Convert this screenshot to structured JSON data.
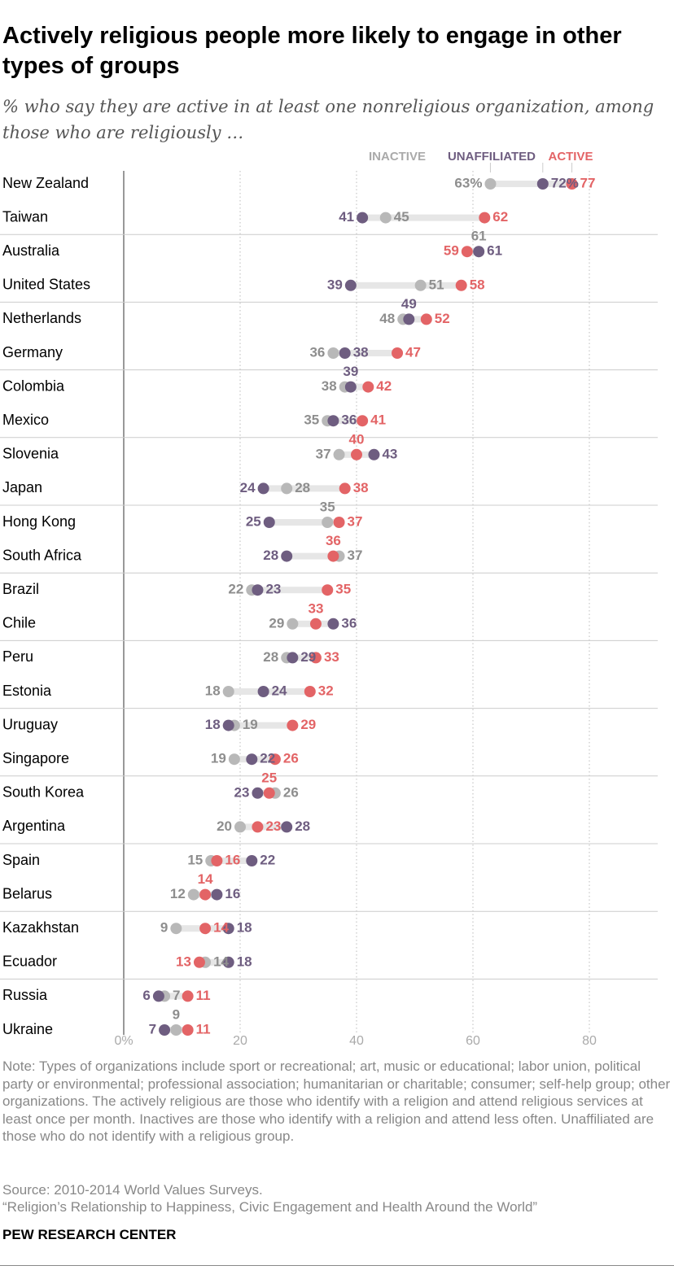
{
  "title": "Actively religious people more likely to engage in other types of groups",
  "subtitle": "% who say they are active in at least one nonreligious organization, among those who are religiously …",
  "colors": {
    "inactive": "#b8b8b8",
    "unaffiliated": "#6e5d80",
    "active": "#e36466",
    "inactive_label": "#8e8e8e",
    "connector": "#e6e6e6",
    "axis_text": "#aaaaaa"
  },
  "chart_data": {
    "type": "dot",
    "xlim": [
      0,
      80
    ],
    "ticks": [
      0,
      20,
      40,
      60,
      80
    ],
    "tick_labels": [
      "0%",
      "20",
      "40",
      "60",
      "80"
    ],
    "legend": [
      "INACTIVE",
      "UNAFFILIATED",
      "ACTIVE"
    ],
    "series_order": [
      "inactive",
      "unaffiliated",
      "active"
    ],
    "rows": [
      {
        "country": "New Zealand",
        "inactive": 63,
        "unaffiliated": 72,
        "active": 77,
        "labels": {
          "inactive": "63%",
          "unaffiliated": "72%",
          "active": "77"
        }
      },
      {
        "country": "Taiwan",
        "inactive": 45,
        "unaffiliated": 41,
        "active": 62
      },
      {
        "country": "Australia",
        "inactive": 61,
        "unaffiliated": 61,
        "active": 59
      },
      {
        "country": "United States",
        "inactive": 51,
        "unaffiliated": 39,
        "active": 58
      },
      {
        "country": "Netherlands",
        "inactive": 48,
        "unaffiliated": 49,
        "active": 52
      },
      {
        "country": "Germany",
        "inactive": 36,
        "unaffiliated": 38,
        "active": 47
      },
      {
        "country": "Colombia",
        "inactive": 38,
        "unaffiliated": 39,
        "active": 42
      },
      {
        "country": "Mexico",
        "inactive": 35,
        "unaffiliated": 36,
        "active": 41
      },
      {
        "country": "Slovenia",
        "inactive": 37,
        "unaffiliated": 43,
        "active": 40
      },
      {
        "country": "Japan",
        "inactive": 28,
        "unaffiliated": 24,
        "active": 38
      },
      {
        "country": "Hong Kong",
        "inactive": 35,
        "unaffiliated": 25,
        "active": 37
      },
      {
        "country": "South Africa",
        "inactive": 37,
        "unaffiliated": 28,
        "active": 36
      },
      {
        "country": "Brazil",
        "inactive": 22,
        "unaffiliated": 23,
        "active": 35
      },
      {
        "country": "Chile",
        "inactive": 29,
        "unaffiliated": 36,
        "active": 33
      },
      {
        "country": "Peru",
        "inactive": 28,
        "unaffiliated": 29,
        "active": 33
      },
      {
        "country": "Estonia",
        "inactive": 18,
        "unaffiliated": 24,
        "active": 32
      },
      {
        "country": "Uruguay",
        "inactive": 19,
        "unaffiliated": 18,
        "active": 29
      },
      {
        "country": "Singapore",
        "inactive": 19,
        "unaffiliated": 22,
        "active": 26
      },
      {
        "country": "South Korea",
        "inactive": 26,
        "unaffiliated": 23,
        "active": 25
      },
      {
        "country": "Argentina",
        "inactive": 20,
        "unaffiliated": 28,
        "active": 23
      },
      {
        "country": "Spain",
        "inactive": 15,
        "unaffiliated": 22,
        "active": 16
      },
      {
        "country": "Belarus",
        "inactive": 12,
        "unaffiliated": 16,
        "active": 14
      },
      {
        "country": "Kazakhstan",
        "inactive": 9,
        "unaffiliated": 18,
        "active": 14
      },
      {
        "country": "Ecuador",
        "inactive": 14,
        "unaffiliated": 18,
        "active": 13
      },
      {
        "country": "Russia",
        "inactive": 7,
        "unaffiliated": 6,
        "active": 11
      },
      {
        "country": "Ukraine",
        "inactive": 9,
        "unaffiliated": 7,
        "active": 11
      }
    ]
  },
  "note": "Note: Types of organizations include sport or recreational; art, music or educational; labor union, political party or environmental; professional association; humanitarian or charitable; consumer; self-help group; other organizations. The actively religious are those who identify with a religion and attend religious services at least once per month. Inactives are those who identify with a religion and attend less often. Unaffiliated are those who do not identify with a religious group.",
  "source": "Source: 2010-2014 World Values Surveys.",
  "report": "“Religion’s Relationship to Happiness, Civic Engagement and Health Around the World”",
  "brand": "PEW RESEARCH CENTER"
}
